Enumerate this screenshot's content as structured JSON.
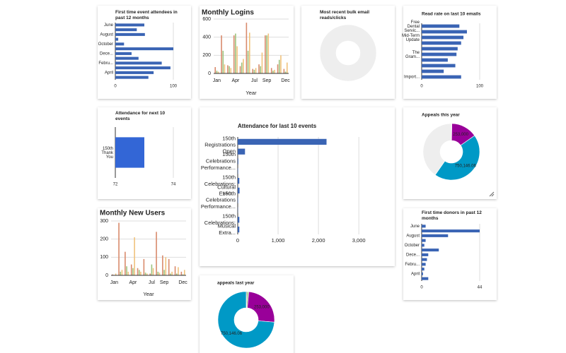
{
  "chart_data": [
    {
      "type": "hbar",
      "title": "First time event attendees in past 12 months",
      "categories": [
        "June",
        null,
        "August",
        null,
        "October",
        null,
        "Dece...",
        null,
        "Febru...",
        null,
        "April",
        null
      ],
      "values": [
        50,
        37,
        51,
        5,
        15,
        100,
        28,
        40,
        80,
        95,
        66,
        57
      ],
      "color": "#3a64b4",
      "xlim": [
        0,
        100
      ],
      "xticks": [
        0,
        100
      ],
      "grid": true
    },
    {
      "type": "column",
      "title": "Monthly Logins",
      "categories": [
        "Jan",
        null,
        null,
        "Apr",
        null,
        null,
        "Jul",
        null,
        "Sep",
        null,
        null,
        "Dec"
      ],
      "series": [
        {
          "color": "#d98a6c",
          "values": [
            70,
            420,
            90,
            420,
            80,
            560,
            50,
            100,
            420,
            60,
            100,
            50
          ]
        },
        {
          "color": "#9cc37e",
          "values": [
            30,
            250,
            80,
            440,
            120,
            250,
            40,
            80,
            420,
            30,
            150,
            20
          ]
        },
        {
          "color": "#f0c27c",
          "values": [
            20,
            100,
            60,
            300,
            160,
            450,
            60,
            230,
            440,
            40,
            200,
            120
          ]
        }
      ],
      "ylim": [
        0,
        600
      ],
      "yticks": [
        0,
        200,
        400,
        600
      ],
      "x_label": "Year",
      "grid": true
    },
    {
      "type": "donut",
      "title": "Most recent bulk email reads/clicks",
      "values": [
        100
      ],
      "colors": [
        "#eeeeee"
      ]
    },
    {
      "type": "hbar",
      "title": "Read rate on last 10 emails",
      "categories": [
        "Free Dental Servic...",
        null,
        "Mid-Term Update",
        null,
        null,
        "The Gram...",
        null,
        null,
        null,
        "Import..."
      ],
      "values": [
        65,
        78,
        72,
        68,
        62,
        60,
        45,
        58,
        38,
        68
      ],
      "color": "#3a64b4",
      "xlim": [
        0,
        100
      ],
      "xticks": [
        0,
        100
      ],
      "grid": true
    },
    {
      "type": "hbar",
      "title": "Attendance for next 10 events",
      "categories": [
        "150th Thank You"
      ],
      "values": [
        73
      ],
      "color": "#3366d6",
      "xlim": [
        72,
        74
      ],
      "xticks": [
        72,
        74
      ],
      "grid": true
    },
    {
      "type": "hbar",
      "title": "Attendance for last 10 events",
      "categories": [
        "150th Registrations",
        "Open",
        "150th Celebrations Performance...",
        null,
        "150th Celebrations:",
        "Cultural Even...",
        "150th Celebrations Performance...",
        null,
        "150th Celebrations:",
        "Musical Extra..."
      ],
      "values": [
        2200,
        180,
        15,
        10,
        40,
        45,
        10,
        5,
        40,
        40
      ],
      "color": "#3a64b4",
      "xlim": [
        0,
        3400
      ],
      "xticks": [
        0,
        {
          "value": 1000,
          "label": "1,000"
        },
        {
          "value": 2000,
          "label": "2,000"
        },
        {
          "value": 3000,
          "label": "3,000"
        }
      ],
      "grid": true
    },
    {
      "type": "donut",
      "title": "Appeals this year",
      "values": [
        5000,
        253000,
        750146.06,
        680000
      ],
      "value_labels": [
        null,
        "253,000",
        "750,146.06",
        null
      ],
      "colors": [
        "#444444",
        "#990099",
        "#0099c6",
        "#eeeeee"
      ]
    },
    {
      "type": "column",
      "title": "Monthly New Users",
      "categories": [
        "Jan",
        null,
        null,
        "Apr",
        null,
        null,
        "Jul",
        null,
        "Sep",
        null,
        null,
        "Dec"
      ],
      "series": [
        {
          "color": "#d98a6c",
          "values": [
            5,
            290,
            130,
            60,
            40,
            90,
            10,
            240,
            110,
            90,
            50,
            20
          ]
        },
        {
          "color": "#9cc37e",
          "values": [
            0,
            20,
            50,
            40,
            30,
            15,
            60,
            20,
            30,
            10,
            10,
            5
          ]
        },
        {
          "color": "#f0c27c",
          "values": [
            10,
            30,
            20,
            210,
            20,
            10,
            40,
            15,
            100,
            20,
            45,
            30
          ]
        }
      ],
      "ylim": [
        0,
        300
      ],
      "yticks": [
        0,
        100,
        200,
        300
      ],
      "x_label": "Year",
      "grid": true
    },
    {
      "type": "donut",
      "title": "appeals last year",
      "values": [
        5000,
        10000,
        253000,
        750146.06
      ],
      "value_labels": [
        null,
        null,
        "253,000",
        "750,146.06"
      ],
      "colors": [
        "#444444",
        "#9cc37e",
        "#990099",
        "#0099c6"
      ]
    },
    {
      "type": "hbar",
      "title": "First time donors in past 12 months",
      "categories": [
        "June",
        null,
        "August",
        null,
        "October",
        null,
        "Dece...",
        null,
        "Febru...",
        null,
        "April",
        null
      ],
      "values": [
        3,
        44,
        20,
        3,
        2,
        13,
        5,
        4,
        3,
        2,
        1,
        5
      ],
      "color": "#3a64b4",
      "xlim": [
        0,
        44
      ],
      "xticks": [
        0,
        44
      ],
      "grid": true
    }
  ]
}
